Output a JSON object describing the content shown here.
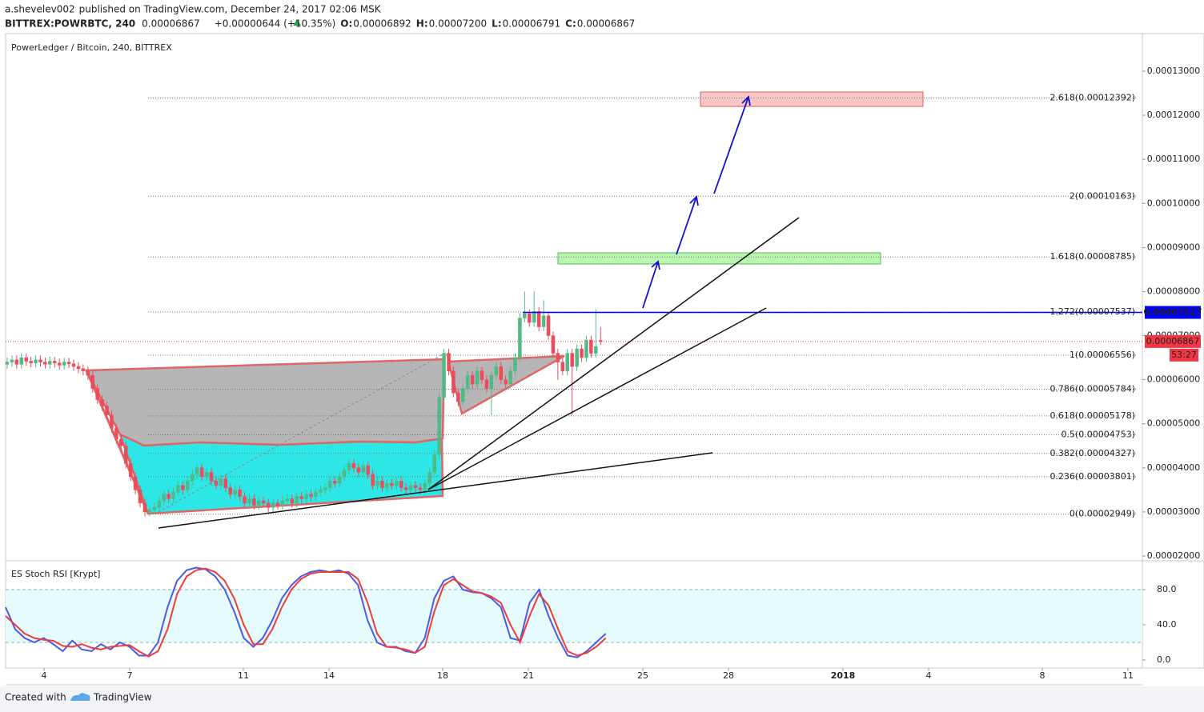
{
  "header": {
    "author": "a.shevelev002",
    "published": "published on TradingView.com, December 24, 2017 02:06 MSK",
    "symbol": "BITTREX:POWRBTC, 240",
    "last": "0.00006867",
    "change": "+0.00000644 (+10.35%)",
    "ohlc": [
      {
        "label": "O:",
        "value": "0.00006892"
      },
      {
        "label": "H:",
        "value": "0.00007200"
      },
      {
        "label": "L:",
        "value": "0.00006791"
      },
      {
        "label": "C:",
        "value": "0.00006867"
      }
    ]
  },
  "chart_data": [
    {
      "type": "candlestick",
      "title": "PowerLedger / Bitcoin, 240, BITTREX",
      "up_color": "#53b987",
      "down_color": "#eb4d5c",
      "ylim": [
        1.909e-05,
        0.00013853
      ],
      "yticks": [
        {
          "value": 2e-05,
          "label": "0.00002000"
        },
        {
          "value": 3e-05,
          "label": "0.00003000"
        },
        {
          "value": 4e-05,
          "label": "0.00004000"
        },
        {
          "value": 5e-05,
          "label": "0.00005000"
        },
        {
          "value": 6e-05,
          "label": "0.00006000"
        },
        {
          "value": 7e-05,
          "label": "0.00007000"
        },
        {
          "value": 8e-05,
          "label": "0.00008000"
        },
        {
          "value": 9e-05,
          "label": "0.00009000"
        },
        {
          "value": 0.0001,
          "label": "0.00010000"
        },
        {
          "value": 0.00011,
          "label": "0.00011000"
        },
        {
          "value": 0.00012,
          "label": "0.00012000"
        },
        {
          "value": 0.00013,
          "label": "0.00013000"
        }
      ],
      "x_labels": [
        "4",
        "7",
        "11",
        "14",
        "18",
        "21",
        "25",
        "28",
        "2018",
        "4",
        "8",
        "11"
      ],
      "fib_levels": [
        {
          "value": 0.00012392,
          "label": "2.618(0.00012392)"
        },
        {
          "value": 0.00010163,
          "label": "2(0.00010163)"
        },
        {
          "value": 8.785e-05,
          "label": "1.618(0.00008785)"
        },
        {
          "value": 7.537e-05,
          "label": "1.272(0.00007537)"
        },
        {
          "value": 6.556e-05,
          "label": "1(0.00006556)"
        },
        {
          "value": 5.784e-05,
          "label": "0.786(0.00005784)"
        },
        {
          "value": 5.178e-05,
          "label": "0.618(0.00005178)"
        },
        {
          "value": 4.753e-05,
          "label": "0.5(0.00004753)"
        },
        {
          "value": 4.327e-05,
          "label": "0.382(0.00004327)"
        },
        {
          "value": 3.801e-05,
          "label": "0.236(0.00003801)"
        },
        {
          "value": 2.949e-05,
          "label": "0(0.00002949)"
        }
      ],
      "level_line": {
        "value": 7.527e-05,
        "label": "0.00007527",
        "color": "#0000ff"
      },
      "price_line": {
        "value": 6.867e-05,
        "label": "0.00006867",
        "color": "#f23645",
        "countdown": "53:27"
      },
      "candles": [
        [
          6.35e-05,
          6.5e-05,
          6.25e-05,
          6.4e-05
        ],
        [
          6.4e-05,
          6.55e-05,
          6.3e-05,
          6.45e-05
        ],
        [
          6.45e-05,
          6.55e-05,
          6.25e-05,
          6.35e-05
        ],
        [
          6.35e-05,
          6.6e-05,
          6.25e-05,
          6.5e-05
        ],
        [
          6.5e-05,
          6.6e-05,
          6.32e-05,
          6.42e-05
        ],
        [
          6.42e-05,
          6.52e-05,
          6.28e-05,
          6.38e-05
        ],
        [
          6.38e-05,
          6.55e-05,
          6.28e-05,
          6.45e-05
        ],
        [
          6.45e-05,
          6.55e-05,
          6.3e-05,
          6.4e-05
        ],
        [
          6.4e-05,
          6.5e-05,
          6.25e-05,
          6.35e-05
        ],
        [
          6.35e-05,
          6.52e-05,
          6.25e-05,
          6.42e-05
        ],
        [
          6.42e-05,
          6.52e-05,
          6.28e-05,
          6.38e-05
        ],
        [
          6.38e-05,
          6.48e-05,
          6.23e-05,
          6.33e-05
        ],
        [
          6.33e-05,
          6.5e-05,
          6.23e-05,
          6.4e-05
        ],
        [
          6.4e-05,
          6.5e-05,
          6.26e-05,
          6.36e-05
        ],
        [
          6.36e-05,
          6.46e-05,
          6.2e-05,
          6.3e-05
        ],
        [
          6.3e-05,
          6.4e-05,
          6.15e-05,
          6.25e-05
        ],
        [
          6.25e-05,
          6.35e-05,
          6.1e-05,
          6.2e-05
        ],
        [
          6.2e-05,
          6.3e-05,
          6e-05,
          6.1e-05
        ],
        [
          6.1e-05,
          6.2e-05,
          5.7e-05,
          5.8e-05
        ],
        [
          5.8e-05,
          5.9e-05,
          5.45e-05,
          5.55e-05
        ],
        [
          5.55e-05,
          5.65e-05,
          5.3e-05,
          5.4e-05
        ],
        [
          5.4e-05,
          5.5e-05,
          5.1e-05,
          5.2e-05
        ],
        [
          5.2e-05,
          5.3e-05,
          4.8e-05,
          4.9e-05
        ],
        [
          4.9e-05,
          5e-05,
          4.55e-05,
          4.65e-05
        ],
        [
          4.65e-05,
          4.75e-05,
          4.4e-05,
          4.5e-05
        ],
        [
          4.5e-05,
          4.6e-05,
          4e-05,
          4.1e-05
        ],
        [
          4.1e-05,
          4.2e-05,
          3.7e-05,
          3.8e-05
        ],
        [
          3.8e-05,
          3.9e-05,
          3.4e-05,
          3.5e-05
        ],
        [
          3.5e-05,
          3.6e-05,
          3.1e-05,
          3.2e-05
        ],
        [
          3.2e-05,
          3.3e-05,
          2.9e-05,
          3e-05
        ],
        [
          3e-05,
          3.15e-05,
          2.9e-05,
          3.05e-05
        ],
        [
          3.05e-05,
          3.2e-05,
          2.95e-05,
          3.1e-05
        ],
        [
          3.1e-05,
          3.35e-05,
          3e-05,
          3.25e-05
        ],
        [
          3.25e-05,
          3.5e-05,
          3.15e-05,
          3.4e-05
        ],
        [
          3.4e-05,
          3.5e-05,
          3.2e-05,
          3.3e-05
        ],
        [
          3.3e-05,
          3.55e-05,
          3.2e-05,
          3.45e-05
        ],
        [
          3.45e-05,
          3.7e-05,
          3.35e-05,
          3.6e-05
        ],
        [
          3.6e-05,
          3.7e-05,
          3.4e-05,
          3.5e-05
        ],
        [
          3.5e-05,
          3.8e-05,
          3.4e-05,
          3.7e-05
        ],
        [
          3.7e-05,
          3.95e-05,
          3.6e-05,
          3.85e-05
        ],
        [
          3.85e-05,
          4.1e-05,
          3.75e-05,
          4e-05
        ],
        [
          4e-05,
          4.1e-05,
          3.7e-05,
          3.8e-05
        ],
        [
          3.8e-05,
          4e-05,
          3.7e-05,
          3.9e-05
        ],
        [
          3.9e-05,
          4e-05,
          3.6e-05,
          3.7e-05
        ],
        [
          3.7e-05,
          3.8e-05,
          3.5e-05,
          3.6e-05
        ],
        [
          3.6e-05,
          3.85e-05,
          3.5e-05,
          3.75e-05
        ],
        [
          3.75e-05,
          3.85e-05,
          3.45e-05,
          3.55e-05
        ],
        [
          3.55e-05,
          3.65e-05,
          3.3e-05,
          3.4e-05
        ],
        [
          3.4e-05,
          3.6e-05,
          3.3e-05,
          3.5e-05
        ],
        [
          3.5e-05,
          3.6e-05,
          3.25e-05,
          3.35e-05
        ],
        [
          3.35e-05,
          3.45e-05,
          3.1e-05,
          3.2e-05
        ],
        [
          3.2e-05,
          3.4e-05,
          3.1e-05,
          3.3e-05
        ],
        [
          3.3e-05,
          3.4e-05,
          3.05e-05,
          3.15e-05
        ],
        [
          3.15e-05,
          3.35e-05,
          3.05e-05,
          3.25e-05
        ],
        [
          3.25e-05,
          3.35e-05,
          3.1e-05,
          3.2e-05
        ],
        [
          3.2e-05,
          3.3e-05,
          3e-05,
          3.1e-05
        ],
        [
          3.1e-05,
          3.3e-05,
          3e-05,
          3.2e-05
        ],
        [
          3.2e-05,
          3.3e-05,
          3.05e-05,
          3.15e-05
        ],
        [
          3.15e-05,
          3.35e-05,
          3.05e-05,
          3.25e-05
        ],
        [
          3.25e-05,
          3.4e-05,
          3.15e-05,
          3.3e-05
        ],
        [
          3.3e-05,
          3.4e-05,
          3.1e-05,
          3.2e-05
        ],
        [
          3.2e-05,
          3.45e-05,
          3.1e-05,
          3.35e-05
        ],
        [
          3.35e-05,
          3.45e-05,
          3.2e-05,
          3.3e-05
        ],
        [
          3.3e-05,
          3.5e-05,
          3.2e-05,
          3.4e-05
        ],
        [
          3.4e-05,
          3.5e-05,
          3.25e-05,
          3.35e-05
        ],
        [
          3.35e-05,
          3.55e-05,
          3.25e-05,
          3.45e-05
        ],
        [
          3.45e-05,
          3.6e-05,
          3.35e-05,
          3.5e-05
        ],
        [
          3.5e-05,
          3.65e-05,
          3.4e-05,
          3.55e-05
        ],
        [
          3.55e-05,
          3.8e-05,
          3.45e-05,
          3.7e-05
        ],
        [
          3.7e-05,
          3.8e-05,
          3.55e-05,
          3.65e-05
        ],
        [
          3.65e-05,
          3.9e-05,
          3.55e-05,
          3.8e-05
        ],
        [
          3.8e-05,
          4.05e-05,
          3.7e-05,
          3.95e-05
        ],
        [
          3.95e-05,
          4.2e-05,
          3.85e-05,
          4.1e-05
        ],
        [
          4.1e-05,
          4.2e-05,
          3.9e-05,
          4e-05
        ],
        [
          4e-05,
          4.1e-05,
          3.8e-05,
          3.9e-05
        ],
        [
          3.9e-05,
          4.15e-05,
          3.8e-05,
          4.05e-05
        ],
        [
          4.05e-05,
          4.15e-05,
          3.75e-05,
          3.85e-05
        ],
        [
          3.85e-05,
          3.95e-05,
          3.5e-05,
          3.6e-05
        ],
        [
          3.6e-05,
          3.8e-05,
          3.5e-05,
          3.7e-05
        ],
        [
          3.7e-05,
          3.8e-05,
          3.45e-05,
          3.55e-05
        ],
        [
          3.55e-05,
          3.75e-05,
          3.45e-05,
          3.65e-05
        ],
        [
          3.65e-05,
          3.75e-05,
          3.5e-05,
          3.6e-05
        ],
        [
          3.6e-05,
          3.8e-05,
          3.5e-05,
          3.7e-05
        ],
        [
          3.7e-05,
          3.8e-05,
          3.45e-05,
          3.55e-05
        ],
        [
          3.55e-05,
          3.65e-05,
          3.4e-05,
          3.5e-05
        ],
        [
          3.5e-05,
          3.7e-05,
          3.4e-05,
          3.6e-05
        ],
        [
          3.6e-05,
          3.7e-05,
          3.45e-05,
          3.55e-05
        ],
        [
          3.55e-05,
          3.65e-05,
          3.4e-05,
          3.5e-05
        ],
        [
          3.5e-05,
          3.75e-05,
          3.4e-05,
          3.65e-05
        ],
        [
          3.65e-05,
          4e-05,
          3.55e-05,
          3.9e-05
        ],
        [
          3.9e-05,
          4.4e-05,
          3.8e-05,
          4.3e-05
        ],
        [
          4.3e-05,
          5.7e-05,
          4.2e-05,
          5.6e-05
        ],
        [
          5.6e-05,
          6.7e-05,
          5.5e-05,
          6.6e-05
        ],
        [
          6.6e-05,
          6.7e-05,
          6.1e-05,
          6.2e-05
        ],
        [
          6.2e-05,
          6.3e-05,
          5.6e-05,
          5.7e-05
        ],
        [
          5.7e-05,
          5.8e-05,
          5.4e-05,
          5.5e-05
        ],
        [
          5.5e-05,
          5.9e-05,
          5.4e-05,
          5.8e-05
        ],
        [
          5.8e-05,
          6.2e-05,
          5.7e-05,
          6.1e-05
        ],
        [
          6.1e-05,
          6.2e-05,
          5.8e-05,
          5.9e-05
        ],
        [
          5.9e-05,
          6.3e-05,
          5.8e-05,
          6.2e-05
        ],
        [
          6.2e-05,
          6.3e-05,
          5.9e-05,
          6e-05
        ],
        [
          6e-05,
          6.1e-05,
          5.7e-05,
          5.8e-05
        ],
        [
          5.8e-05,
          6.2e-05,
          5.2e-05,
          6.1e-05
        ],
        [
          6.1e-05,
          6.4e-05,
          6e-05,
          6.3e-05
        ],
        [
          6.3e-05,
          6.4e-05,
          5.9e-05,
          6e-05
        ],
        [
          6e-05,
          6.1e-05,
          5.8e-05,
          5.9e-05
        ],
        [
          5.9e-05,
          6.3e-05,
          5.8e-05,
          6.2e-05
        ],
        [
          6.2e-05,
          6.6e-05,
          6.1e-05,
          6.5e-05
        ],
        [
          6.5e-05,
          7.5e-05,
          6.4e-05,
          7.4e-05
        ],
        [
          7.4e-05,
          8e-05,
          7.3e-05,
          7.5e-05
        ],
        [
          7.5e-05,
          7.6e-05,
          7.2e-05,
          7.3e-05
        ],
        [
          7.3e-05,
          8e-05,
          7.2e-05,
          7.55e-05
        ],
        [
          7.55e-05,
          7.65e-05,
          7.1e-05,
          7.2e-05
        ],
        [
          7.2e-05,
          7.8e-05,
          7.1e-05,
          7.45e-05
        ],
        [
          7.45e-05,
          7.55e-05,
          6.9e-05,
          7e-05
        ],
        [
          7e-05,
          7.1e-05,
          6.5e-05,
          6.6e-05
        ],
        [
          6.6e-05,
          6.7e-05,
          6e-05,
          6.4e-05
        ],
        [
          6.4e-05,
          6.5e-05,
          6.1e-05,
          6.2e-05
        ],
        [
          6.2e-05,
          6.7e-05,
          6.1e-05,
          6.6e-05
        ],
        [
          6.6e-05,
          6.7e-05,
          5.2e-05,
          6.3e-05
        ],
        [
          6.3e-05,
          6.8e-05,
          6.2e-05,
          6.7e-05
        ],
        [
          6.7e-05,
          6.8e-05,
          6.4e-05,
          6.5e-05
        ],
        [
          6.5e-05,
          7e-05,
          6.4e-05,
          6.9e-05
        ],
        [
          6.9e-05,
          7e-05,
          6.5e-05,
          6.6e-05
        ],
        [
          6.6e-05,
          7.6e-05,
          6.5e-05,
          6.75e-05
        ],
        [
          6.892e-05,
          7.2e-05,
          6.791e-05,
          6.867e-05
        ]
      ]
    },
    {
      "type": "line",
      "title": "ES Stoch RSI [Krypt]",
      "ylim": [
        -9.1,
        110.9
      ],
      "yticks": [
        {
          "value": 0,
          "label": "0.0"
        },
        {
          "value": 40,
          "label": "40.0"
        },
        {
          "value": 80,
          "label": "80.0"
        }
      ],
      "band": [
        20,
        80
      ],
      "series": [
        {
          "color": "#4a5be8",
          "values": [
            60,
            35,
            25,
            20,
            25,
            18,
            10,
            22,
            12,
            10,
            18,
            12,
            20,
            15,
            5,
            5,
            20,
            60,
            90,
            102,
            105,
            103,
            95,
            80,
            55,
            25,
            15,
            25,
            45,
            70,
            85,
            95,
            100,
            102,
            100,
            102,
            98,
            85,
            45,
            20,
            15,
            15,
            10,
            8,
            25,
            70,
            90,
            95,
            80,
            77,
            76,
            70,
            60,
            25,
            22,
            65,
            80,
            50,
            25,
            5,
            3,
            10,
            20,
            30
          ]
        },
        {
          "color": "#ef3b3b",
          "values": [
            50,
            40,
            30,
            25,
            23,
            22,
            16,
            15,
            18,
            14,
            12,
            15,
            16,
            17,
            10,
            4,
            10,
            35,
            75,
            95,
            102,
            104,
            100,
            90,
            70,
            40,
            18,
            18,
            35,
            60,
            80,
            92,
            98,
            100,
            100,
            100,
            100,
            92,
            65,
            30,
            15,
            14,
            12,
            8,
            15,
            55,
            85,
            92,
            85,
            78,
            76,
            72,
            65,
            40,
            20,
            50,
            75,
            62,
            35,
            10,
            5,
            8,
            15,
            25
          ]
        }
      ]
    }
  ],
  "footer": {
    "created": "Created with",
    "brand": "TradingView"
  }
}
